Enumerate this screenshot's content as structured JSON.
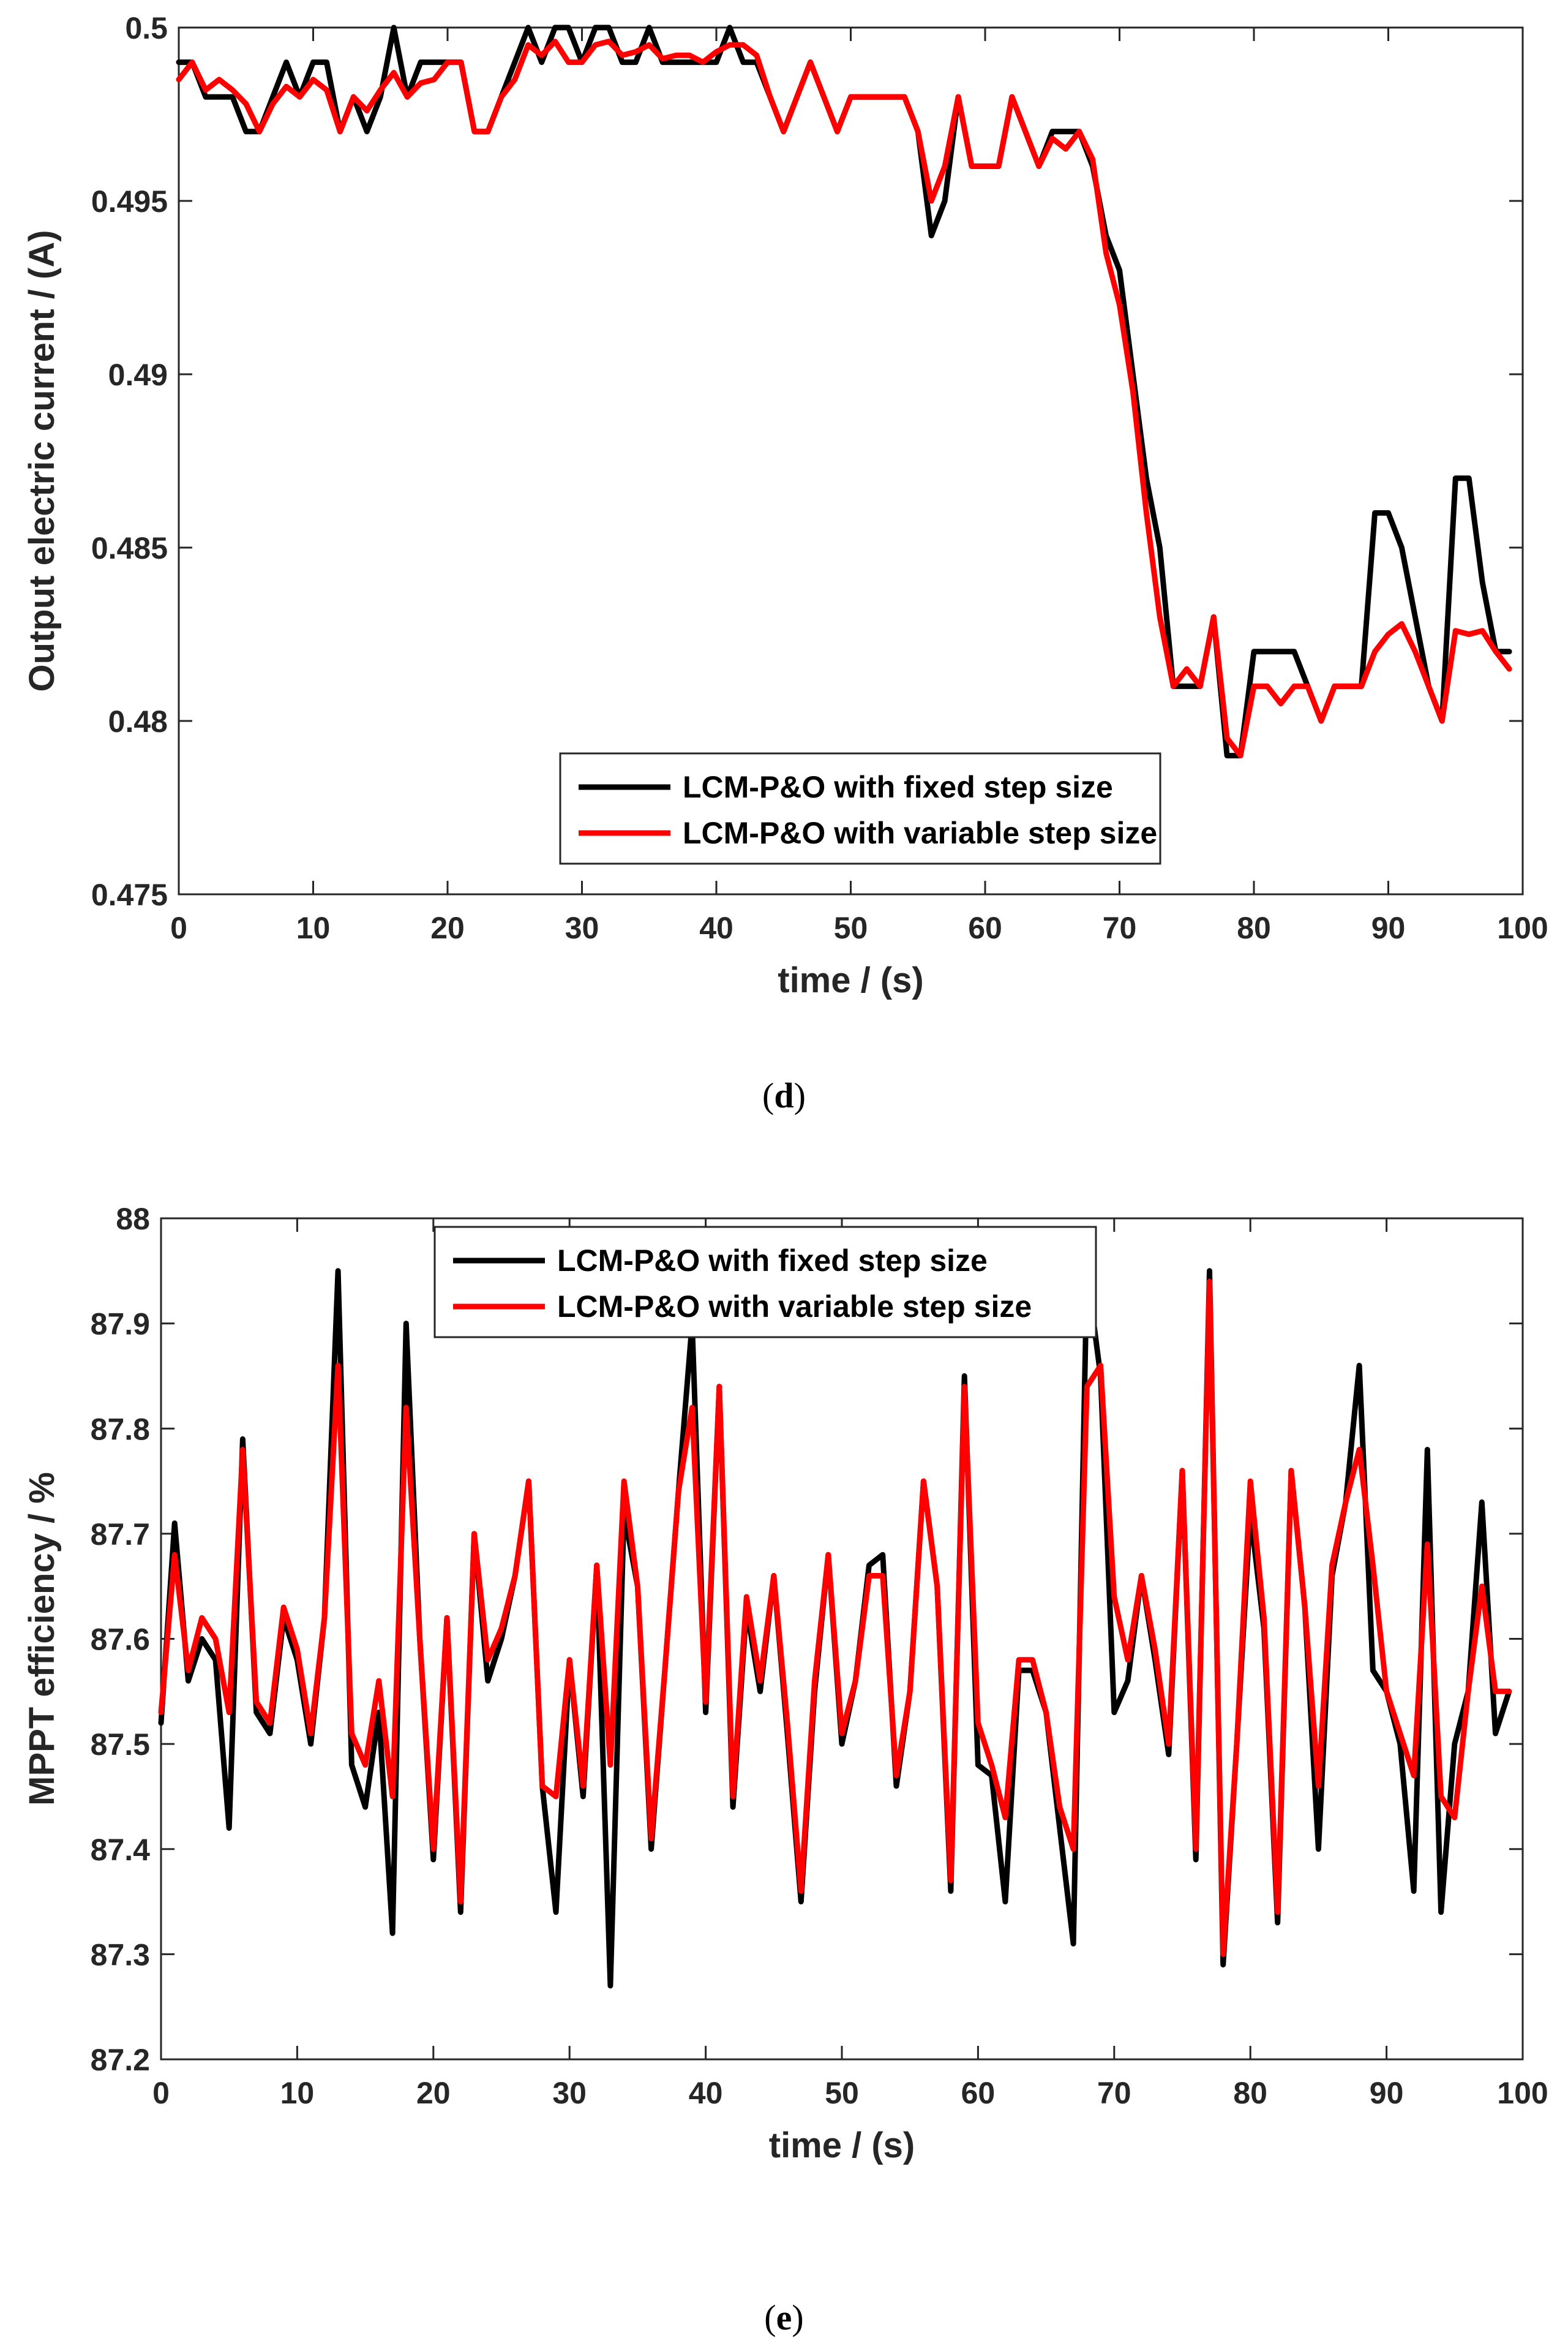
{
  "chart_data": [
    {
      "type": "line",
      "caption_letter": "d",
      "title": "",
      "xlabel": "time / (s)",
      "ylabel": "Output electric current / (A)",
      "xlim": [
        0,
        100
      ],
      "ylim": [
        0.475,
        0.5
      ],
      "xticks": [
        0,
        10,
        20,
        30,
        40,
        50,
        60,
        70,
        80,
        90,
        100
      ],
      "yticks": [
        0.475,
        0.48,
        0.485,
        0.49,
        0.495,
        0.5
      ],
      "ytick_labels": [
        "0.475",
        "0.48",
        "0.485",
        "0.49",
        "0.495",
        "0.5"
      ],
      "legend_position": "bottom-center",
      "series": [
        {
          "name": "LCM-P&O with fixed step size",
          "color": "#000000",
          "x": [
            0,
            1,
            2,
            3,
            4,
            5,
            6,
            7,
            8,
            9,
            10,
            11,
            12,
            13,
            14,
            15,
            16,
            17,
            18,
            19,
            20,
            21,
            22,
            23,
            24,
            25,
            26,
            27,
            28,
            29,
            30,
            31,
            32,
            33,
            34,
            35,
            36,
            37,
            38,
            39,
            40,
            41,
            42,
            43,
            44,
            45,
            46,
            47,
            48,
            49,
            50,
            51,
            52,
            53,
            54,
            55,
            56,
            57,
            58,
            59,
            60,
            61,
            62,
            63,
            64,
            65,
            66,
            67,
            68,
            69,
            70,
            71,
            72,
            73,
            74,
            75,
            76,
            77,
            78,
            79,
            80,
            81,
            82,
            83,
            84,
            85,
            86,
            87,
            88,
            89,
            90,
            91,
            92,
            93,
            94,
            95,
            96,
            97,
            98,
            99
          ],
          "values": [
            0.499,
            0.499,
            0.498,
            0.498,
            0.498,
            0.497,
            0.497,
            0.498,
            0.499,
            0.498,
            0.499,
            0.499,
            0.497,
            0.498,
            0.497,
            0.498,
            0.5,
            0.498,
            0.499,
            0.499,
            0.499,
            0.499,
            0.497,
            0.497,
            0.498,
            0.499,
            0.5,
            0.499,
            0.5,
            0.5,
            0.499,
            0.5,
            0.5,
            0.499,
            0.499,
            0.5,
            0.499,
            0.499,
            0.499,
            0.499,
            0.499,
            0.5,
            0.499,
            0.499,
            0.498,
            0.497,
            0.498,
            0.499,
            0.498,
            0.497,
            0.498,
            0.498,
            0.498,
            0.498,
            0.498,
            0.497,
            0.494,
            0.495,
            0.498,
            0.496,
            0.496,
            0.496,
            0.498,
            0.497,
            0.496,
            0.497,
            0.497,
            0.497,
            0.496,
            0.494,
            0.493,
            0.49,
            0.487,
            0.485,
            0.481,
            0.481,
            0.481,
            0.483,
            0.479,
            0.479,
            0.482,
            0.482,
            0.482,
            0.482,
            0.481,
            0.48,
            0.481,
            0.481,
            0.481,
            0.486,
            0.486,
            0.485,
            0.483,
            0.481,
            0.48,
            0.487,
            0.487,
            0.484,
            0.482,
            0.482
          ]
        },
        {
          "name": "LCM-P&O with variable step size",
          "color": "#ff0000",
          "x": [
            0,
            1,
            2,
            3,
            4,
            5,
            6,
            7,
            8,
            9,
            10,
            11,
            12,
            13,
            14,
            15,
            16,
            17,
            18,
            19,
            20,
            21,
            22,
            23,
            24,
            25,
            26,
            27,
            28,
            29,
            30,
            31,
            32,
            33,
            34,
            35,
            36,
            37,
            38,
            39,
            40,
            41,
            42,
            43,
            44,
            45,
            46,
            47,
            48,
            49,
            50,
            51,
            52,
            53,
            54,
            55,
            56,
            57,
            58,
            59,
            60,
            61,
            62,
            63,
            64,
            65,
            66,
            67,
            68,
            69,
            70,
            71,
            72,
            73,
            74,
            75,
            76,
            77,
            78,
            79,
            80,
            81,
            82,
            83,
            84,
            85,
            86,
            87,
            88,
            89,
            90,
            91,
            92,
            93,
            94,
            95,
            96,
            97,
            98,
            99
          ],
          "values": [
            0.4985,
            0.499,
            0.4982,
            0.4985,
            0.4982,
            0.4978,
            0.497,
            0.4978,
            0.4983,
            0.498,
            0.4985,
            0.4982,
            0.497,
            0.498,
            0.4976,
            0.4982,
            0.4987,
            0.498,
            0.4984,
            0.4985,
            0.499,
            0.499,
            0.497,
            0.497,
            0.498,
            0.4985,
            0.4995,
            0.4992,
            0.4996,
            0.499,
            0.499,
            0.4995,
            0.4996,
            0.4992,
            0.4993,
            0.4995,
            0.4991,
            0.4992,
            0.4992,
            0.499,
            0.4993,
            0.4995,
            0.4995,
            0.4992,
            0.498,
            0.497,
            0.498,
            0.499,
            0.498,
            0.497,
            0.498,
            0.498,
            0.498,
            0.498,
            0.498,
            0.497,
            0.495,
            0.496,
            0.498,
            0.496,
            0.496,
            0.496,
            0.498,
            0.497,
            0.496,
            0.4968,
            0.4965,
            0.497,
            0.4962,
            0.4935,
            0.492,
            0.4895,
            0.486,
            0.483,
            0.481,
            0.4815,
            0.481,
            0.483,
            0.4795,
            0.479,
            0.481,
            0.481,
            0.4805,
            0.481,
            0.481,
            0.48,
            0.481,
            0.481,
            0.481,
            0.482,
            0.4825,
            0.4828,
            0.482,
            0.481,
            0.48,
            0.4826,
            0.4825,
            0.4826,
            0.482,
            0.4815
          ]
        }
      ]
    },
    {
      "type": "line",
      "caption_letter": "e",
      "title": "",
      "xlabel": "time / (s)",
      "ylabel": "MPPT efficiency / %",
      "xlim": [
        0,
        100
      ],
      "ylim": [
        87.2,
        88
      ],
      "xticks": [
        0,
        10,
        20,
        30,
        40,
        50,
        60,
        70,
        80,
        90,
        100
      ],
      "yticks": [
        87.2,
        87.3,
        87.4,
        87.5,
        87.6,
        87.7,
        87.8,
        87.9,
        88
      ],
      "ytick_labels": [
        "87.2",
        "87.3",
        "87.4",
        "87.5",
        "87.6",
        "87.7",
        "87.8",
        "87.9",
        "88"
      ],
      "legend_position": "top-center",
      "series": [
        {
          "name": "LCM-P&O with fixed step size",
          "color": "#000000",
          "x": [
            0,
            1,
            2,
            3,
            4,
            5,
            6,
            7,
            8,
            9,
            10,
            11,
            12,
            13,
            14,
            15,
            16,
            17,
            18,
            19,
            20,
            21,
            22,
            23,
            24,
            25,
            26,
            27,
            28,
            29,
            30,
            31,
            32,
            33,
            34,
            35,
            36,
            37,
            38,
            39,
            40,
            41,
            42,
            43,
            44,
            45,
            46,
            47,
            48,
            49,
            50,
            51,
            52,
            53,
            54,
            55,
            56,
            57,
            58,
            59,
            60,
            61,
            62,
            63,
            64,
            65,
            66,
            67,
            68,
            69,
            70,
            71,
            72,
            73,
            74,
            75,
            76,
            77,
            78,
            79,
            80,
            81,
            82,
            83,
            84,
            85,
            86,
            87,
            88,
            89,
            90,
            91,
            92,
            93,
            94,
            95,
            96,
            97,
            98,
            99
          ],
          "values": [
            87.52,
            87.71,
            87.56,
            87.6,
            87.58,
            87.42,
            87.79,
            87.53,
            87.51,
            87.62,
            87.58,
            87.5,
            87.62,
            87.95,
            87.48,
            87.44,
            87.53,
            87.32,
            87.9,
            87.6,
            87.39,
            87.62,
            87.34,
            87.7,
            87.56,
            87.6,
            87.66,
            87.75,
            87.46,
            87.34,
            87.58,
            87.45,
            87.67,
            87.27,
            87.72,
            87.65,
            87.4,
            87.57,
            87.74,
            87.9,
            87.53,
            87.84,
            87.44,
            87.63,
            87.55,
            87.66,
            87.51,
            87.35,
            87.55,
            87.68,
            87.5,
            87.56,
            87.67,
            87.68,
            87.46,
            87.55,
            87.75,
            87.65,
            87.36,
            87.85,
            87.48,
            87.47,
            87.35,
            87.57,
            87.57,
            87.53,
            87.42,
            87.31,
            87.95,
            87.85,
            87.53,
            87.56,
            87.66,
            87.58,
            87.49,
            87.76,
            87.39,
            87.95,
            87.29,
            87.5,
            87.72,
            87.61,
            87.33,
            87.76,
            87.63,
            87.4,
            87.66,
            87.73,
            87.86,
            87.57,
            87.55,
            87.5,
            87.36,
            87.78,
            87.34,
            87.5,
            87.55,
            87.73,
            87.51,
            87.55
          ]
        },
        {
          "name": "LCM-P&O with variable step size",
          "color": "#ff0000",
          "x": [
            0,
            1,
            2,
            3,
            4,
            5,
            6,
            7,
            8,
            9,
            10,
            11,
            12,
            13,
            14,
            15,
            16,
            17,
            18,
            19,
            20,
            21,
            22,
            23,
            24,
            25,
            26,
            27,
            28,
            29,
            30,
            31,
            32,
            33,
            34,
            35,
            36,
            37,
            38,
            39,
            40,
            41,
            42,
            43,
            44,
            45,
            46,
            47,
            48,
            49,
            50,
            51,
            52,
            53,
            54,
            55,
            56,
            57,
            58,
            59,
            60,
            61,
            62,
            63,
            64,
            65,
            66,
            67,
            68,
            69,
            70,
            71,
            72,
            73,
            74,
            75,
            76,
            77,
            78,
            79,
            80,
            81,
            82,
            83,
            84,
            85,
            86,
            87,
            88,
            89,
            90,
            91,
            92,
            93,
            94,
            95,
            96,
            97,
            98,
            99
          ],
          "values": [
            87.53,
            87.68,
            87.57,
            87.62,
            87.6,
            87.53,
            87.78,
            87.54,
            87.52,
            87.63,
            87.59,
            87.51,
            87.62,
            87.86,
            87.51,
            87.48,
            87.56,
            87.45,
            87.82,
            87.6,
            87.4,
            87.62,
            87.35,
            87.7,
            87.58,
            87.61,
            87.66,
            87.75,
            87.46,
            87.45,
            87.58,
            87.46,
            87.67,
            87.48,
            87.75,
            87.65,
            87.41,
            87.57,
            87.74,
            87.82,
            87.54,
            87.84,
            87.45,
            87.64,
            87.56,
            87.66,
            87.52,
            87.36,
            87.56,
            87.68,
            87.51,
            87.56,
            87.66,
            87.66,
            87.47,
            87.55,
            87.75,
            87.65,
            87.37,
            87.84,
            87.52,
            87.48,
            87.43,
            87.58,
            87.58,
            87.53,
            87.44,
            87.4,
            87.84,
            87.86,
            87.64,
            87.58,
            87.66,
            87.59,
            87.5,
            87.76,
            87.4,
            87.94,
            87.3,
            87.5,
            87.75,
            87.62,
            87.34,
            87.76,
            87.63,
            87.46,
            87.67,
            87.73,
            87.78,
            87.67,
            87.55,
            87.51,
            87.47,
            87.69,
            87.45,
            87.43,
            87.55,
            87.65,
            87.55,
            87.55
          ]
        }
      ]
    }
  ]
}
